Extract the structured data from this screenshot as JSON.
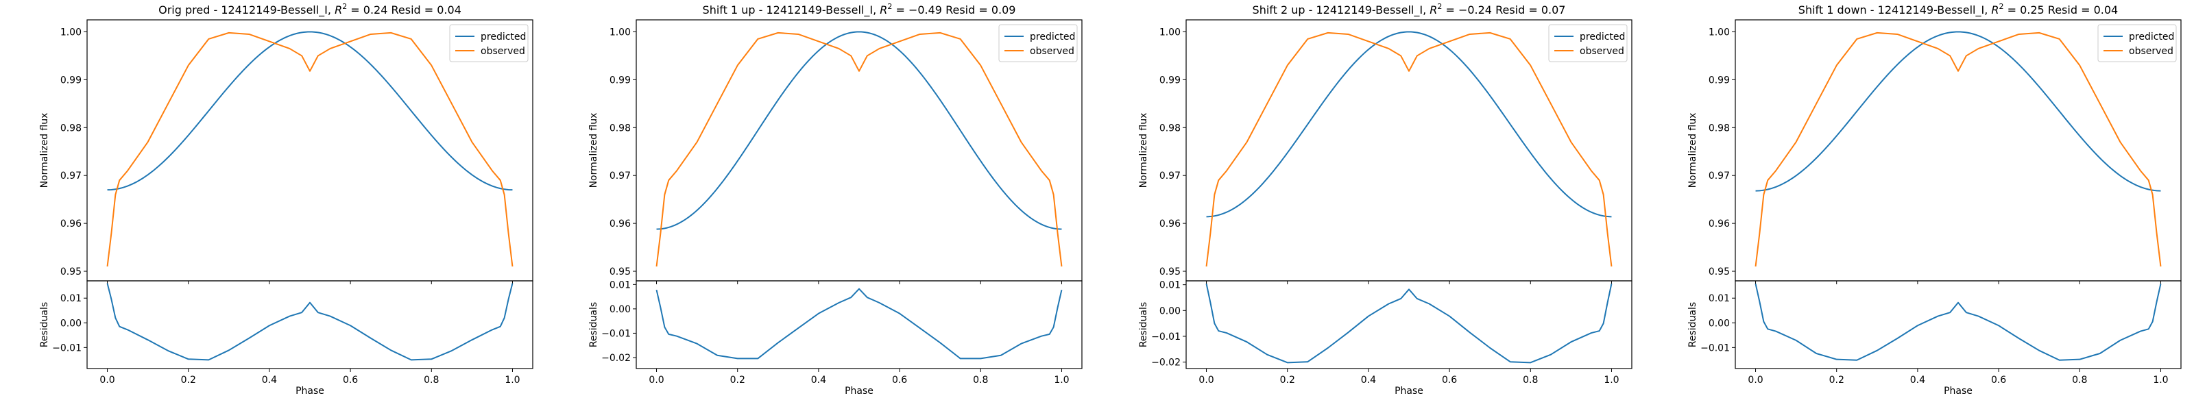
{
  "colors": {
    "predicted": "#1f77b4",
    "observed": "#ff7f0e"
  },
  "chart_data": [
    {
      "type": "line",
      "title": "Orig pred - 12412149-Bessell_I, $R^2 = 0.24$ Resid = 0.04",
      "title_main": "Orig pred - 12412149-Bessell_I, ",
      "title_sym": "R",
      "title_sup": "2",
      "title_rest": " = 0.24 Resid = 0.04",
      "xlabel": "Phase",
      "ylabel_top": "Normalized flux",
      "ylabel_bottom": "Residuals",
      "xlim": [
        -0.05,
        1.05
      ],
      "xticks": [
        "0.0",
        "0.2",
        "0.4",
        "0.6",
        "0.8",
        "1.0"
      ],
      "ylim_top": [
        0.948,
        1.0025
      ],
      "yticks_top": [
        "0.95",
        "0.96",
        "0.97",
        "0.98",
        "0.99",
        "1.00"
      ],
      "ylim_bottom": [
        -0.0185,
        0.017
      ],
      "yticks_bottom": [
        "−0.01",
        "0.00",
        "0.01"
      ],
      "legend": [
        "predicted",
        "observed"
      ],
      "legend_position": "upper right",
      "predicted_min": 0.967,
      "series": [
        {
          "name": "predicted",
          "x": [
            0.0,
            0.05,
            0.1,
            0.15,
            0.2,
            0.25,
            0.3,
            0.35,
            0.4,
            0.45,
            0.5,
            0.55,
            0.6,
            0.65,
            0.7,
            0.75,
            0.8,
            0.85,
            0.9,
            0.95,
            1.0
          ],
          "y": [
            0.967,
            0.9678,
            0.9701,
            0.9737,
            0.9783,
            0.9835,
            0.9887,
            0.9933,
            0.9969,
            0.9992,
            1.0,
            0.9992,
            0.9969,
            0.9933,
            0.9887,
            0.9835,
            0.9783,
            0.9737,
            0.9701,
            0.9678,
            0.967
          ]
        },
        {
          "name": "observed",
          "x": [
            0.0,
            0.01,
            0.02,
            0.03,
            0.05,
            0.1,
            0.15,
            0.2,
            0.25,
            0.3,
            0.35,
            0.4,
            0.45,
            0.48,
            0.5,
            0.52,
            0.55,
            0.6,
            0.65,
            0.7,
            0.75,
            0.8,
            0.85,
            0.9,
            0.95,
            0.97,
            0.98,
            0.99,
            1.0
          ],
          "y": [
            0.951,
            0.958,
            0.966,
            0.969,
            0.971,
            0.977,
            0.985,
            0.993,
            0.9985,
            0.9998,
            0.9995,
            0.998,
            0.9965,
            0.995,
            0.9918,
            0.995,
            0.9965,
            0.998,
            0.9995,
            0.9998,
            0.9985,
            0.993,
            0.985,
            0.977,
            0.971,
            0.969,
            0.966,
            0.958,
            0.951
          ]
        },
        {
          "name": "residuals",
          "x": [
            0.0,
            0.01,
            0.02,
            0.03,
            0.05,
            0.1,
            0.15,
            0.2,
            0.25,
            0.3,
            0.35,
            0.4,
            0.45,
            0.48,
            0.5,
            0.52,
            0.55,
            0.6,
            0.65,
            0.7,
            0.75,
            0.8,
            0.85,
            0.9,
            0.95,
            0.97,
            0.98,
            0.99,
            1.0
          ],
          "y": [
            0.016,
            0.0095,
            0.002,
            -0.0015,
            -0.0028,
            -0.0069,
            -0.0113,
            -0.0147,
            -0.015,
            -0.0111,
            -0.0062,
            -0.0011,
            0.0027,
            0.0042,
            0.0082,
            0.0042,
            0.0027,
            -0.0011,
            -0.0062,
            -0.0111,
            -0.015,
            -0.0147,
            -0.0113,
            -0.0069,
            -0.0028,
            -0.0015,
            0.002,
            0.0095,
            0.016
          ]
        }
      ]
    },
    {
      "type": "line",
      "title": "Shift 1 up - 12412149-Bessell_I, $R^2 = -0.49$ Resid = 0.09",
      "title_main": "Shift 1 up - 12412149-Bessell_I, ",
      "title_sym": "R",
      "title_sup": "2",
      "title_rest": " = −0.49 Resid = 0.09",
      "xlabel": "Phase",
      "ylabel_top": "Normalized flux",
      "ylabel_bottom": "Residuals",
      "xlim": [
        -0.05,
        1.05
      ],
      "xticks": [
        "0.0",
        "0.2",
        "0.4",
        "0.6",
        "0.8",
        "1.0"
      ],
      "ylim_top": [
        0.948,
        1.0025
      ],
      "yticks_top": [
        "0.95",
        "0.96",
        "0.97",
        "0.98",
        "0.99",
        "1.00"
      ],
      "ylim_bottom": [
        -0.0245,
        0.0115
      ],
      "yticks_bottom": [
        "−0.02",
        "−0.01",
        "0.00",
        "0.01"
      ],
      "legend": [
        "predicted",
        "observed"
      ],
      "legend_position": "upper right",
      "predicted_min": 0.9588,
      "series": [
        {
          "name": "predicted",
          "x": [
            0.0,
            0.05,
            0.1,
            0.15,
            0.2,
            0.25,
            0.3,
            0.35,
            0.4,
            0.45,
            0.5,
            0.55,
            0.6,
            0.65,
            0.7,
            0.75,
            0.8,
            0.85,
            0.9,
            0.95,
            1.0
          ],
          "y": [
            0.9588,
            0.9598,
            0.9627,
            0.9672,
            0.9729,
            0.9794,
            0.9859,
            0.9916,
            0.9961,
            0.999,
            1.0,
            0.999,
            0.9961,
            0.9916,
            0.9859,
            0.9794,
            0.9729,
            0.9672,
            0.9627,
            0.9598,
            0.9588
          ]
        },
        {
          "name": "observed",
          "x": [
            0.0,
            0.01,
            0.02,
            0.03,
            0.05,
            0.1,
            0.15,
            0.2,
            0.25,
            0.3,
            0.35,
            0.4,
            0.45,
            0.48,
            0.5,
            0.52,
            0.55,
            0.6,
            0.65,
            0.7,
            0.75,
            0.8,
            0.85,
            0.9,
            0.95,
            0.97,
            0.98,
            0.99,
            1.0
          ],
          "y": [
            0.951,
            0.958,
            0.966,
            0.969,
            0.971,
            0.977,
            0.985,
            0.993,
            0.9985,
            0.9998,
            0.9995,
            0.998,
            0.9965,
            0.995,
            0.9918,
            0.995,
            0.9965,
            0.998,
            0.9995,
            0.9998,
            0.9985,
            0.993,
            0.985,
            0.977,
            0.971,
            0.969,
            0.966,
            0.958,
            0.951
          ]
        },
        {
          "name": "residuals",
          "x": [
            0.0,
            0.01,
            0.02,
            0.03,
            0.05,
            0.1,
            0.15,
            0.2,
            0.25,
            0.3,
            0.35,
            0.4,
            0.45,
            0.48,
            0.5,
            0.52,
            0.55,
            0.6,
            0.65,
            0.7,
            0.75,
            0.8,
            0.85,
            0.9,
            0.95,
            0.97,
            0.98,
            0.99,
            1.0
          ],
          "y": [
            0.0078,
            0.0005,
            -0.0075,
            -0.0104,
            -0.0112,
            -0.0143,
            -0.0191,
            -0.0204,
            -0.0204,
            -0.0139,
            -0.0079,
            -0.0019,
            0.0025,
            0.0047,
            0.0082,
            0.0047,
            0.0025,
            -0.0019,
            -0.0079,
            -0.0139,
            -0.0204,
            -0.0204,
            -0.0191,
            -0.0143,
            -0.0112,
            -0.0104,
            -0.0075,
            0.0005,
            0.0078
          ]
        }
      ]
    },
    {
      "type": "line",
      "title": "Shift 2 up - 12412149-Bessell_I, $R^2 = -0.24$ Resid = 0.07",
      "title_main": "Shift 2 up - 12412149-Bessell_I, ",
      "title_sym": "R",
      "title_sup": "2",
      "title_rest": " = −0.24 Resid = 0.07",
      "xlabel": "Phase",
      "ylabel_top": "Normalized flux",
      "ylabel_bottom": "Residuals",
      "xlim": [
        -0.05,
        1.05
      ],
      "xticks": [
        "0.0",
        "0.2",
        "0.4",
        "0.6",
        "0.8",
        "1.0"
      ],
      "ylim_top": [
        0.948,
        1.0025
      ],
      "yticks_top": [
        "0.95",
        "0.96",
        "0.97",
        "0.98",
        "0.99",
        "1.00"
      ],
      "ylim_bottom": [
        -0.0225,
        0.0115
      ],
      "yticks_bottom": [
        "−0.02",
        "−0.01",
        "0.00",
        "0.01"
      ],
      "legend": [
        "predicted",
        "observed"
      ],
      "legend_position": "upper right",
      "predicted_min": 0.9614,
      "series": [
        {
          "name": "predicted",
          "x": [
            0.0,
            0.05,
            0.1,
            0.15,
            0.2,
            0.25,
            0.3,
            0.35,
            0.4,
            0.45,
            0.5,
            0.55,
            0.6,
            0.65,
            0.7,
            0.75,
            0.8,
            0.85,
            0.9,
            0.95,
            1.0
          ],
          "y": [
            0.9614,
            0.9623,
            0.965,
            0.9693,
            0.9746,
            0.9807,
            0.9868,
            0.9921,
            0.9964,
            0.9991,
            1.0,
            0.9991,
            0.9964,
            0.9921,
            0.9868,
            0.9807,
            0.9746,
            0.9693,
            0.965,
            0.9623,
            0.9614
          ]
        },
        {
          "name": "observed",
          "x": [
            0.0,
            0.01,
            0.02,
            0.03,
            0.05,
            0.1,
            0.15,
            0.2,
            0.25,
            0.3,
            0.35,
            0.4,
            0.45,
            0.48,
            0.5,
            0.52,
            0.55,
            0.6,
            0.65,
            0.7,
            0.75,
            0.8,
            0.85,
            0.9,
            0.95,
            0.97,
            0.98,
            0.99,
            1.0
          ],
          "y": [
            0.951,
            0.958,
            0.966,
            0.969,
            0.971,
            0.977,
            0.985,
            0.993,
            0.9985,
            0.9998,
            0.9995,
            0.998,
            0.9965,
            0.995,
            0.9918,
            0.995,
            0.9965,
            0.998,
            0.9995,
            0.9998,
            0.9985,
            0.993,
            0.985,
            0.977,
            0.971,
            0.969,
            0.966,
            0.958,
            0.951
          ]
        },
        {
          "name": "residuals",
          "x": [
            0.0,
            0.01,
            0.02,
            0.03,
            0.05,
            0.1,
            0.15,
            0.2,
            0.25,
            0.3,
            0.35,
            0.4,
            0.45,
            0.48,
            0.5,
            0.52,
            0.55,
            0.6,
            0.65,
            0.7,
            0.75,
            0.8,
            0.85,
            0.9,
            0.95,
            0.97,
            0.98,
            0.99,
            1.0
          ],
          "y": [
            0.0104,
            0.003,
            -0.005,
            -0.0079,
            -0.0087,
            -0.0122,
            -0.0171,
            -0.0202,
            -0.0199,
            -0.0145,
            -0.0085,
            -0.0022,
            0.0026,
            0.0046,
            0.0082,
            0.0046,
            0.0026,
            -0.0022,
            -0.0085,
            -0.0145,
            -0.0199,
            -0.0202,
            -0.0171,
            -0.0122,
            -0.0087,
            -0.0079,
            -0.005,
            0.003,
            0.0104
          ]
        }
      ]
    },
    {
      "type": "line",
      "title": "Shift 1 down - 12412149-Bessell_I, $R^2 = 0.25$ Resid = 0.04",
      "title_main": "Shift 1 down - 12412149-Bessell_I, ",
      "title_sym": "R",
      "title_sup": "2",
      "title_rest": " = 0.25 Resid = 0.04",
      "xlabel": "Phase",
      "ylabel_top": "Normalized flux",
      "ylabel_bottom": "Residuals",
      "xlim": [
        -0.05,
        1.05
      ],
      "xticks": [
        "0.0",
        "0.2",
        "0.4",
        "0.6",
        "0.8",
        "1.0"
      ],
      "ylim_top": [
        0.948,
        1.0025
      ],
      "yticks_top": [
        "0.95",
        "0.96",
        "0.97",
        "0.98",
        "0.99",
        "1.00"
      ],
      "ylim_bottom": [
        -0.0185,
        0.017
      ],
      "yticks_bottom": [
        "−0.01",
        "0.00",
        "0.01"
      ],
      "legend": [
        "predicted",
        "observed"
      ],
      "legend_position": "upper right",
      "predicted_min": 0.9668,
      "series": [
        {
          "name": "predicted",
          "x": [
            0.0,
            0.05,
            0.1,
            0.15,
            0.2,
            0.25,
            0.3,
            0.35,
            0.4,
            0.45,
            0.5,
            0.55,
            0.6,
            0.65,
            0.7,
            0.75,
            0.8,
            0.85,
            0.9,
            0.95,
            1.0
          ],
          "y": [
            0.9668,
            0.9676,
            0.9699,
            0.9736,
            0.9782,
            0.9834,
            0.9886,
            0.9932,
            0.9969,
            0.9992,
            1.0,
            0.9992,
            0.9969,
            0.9932,
            0.9886,
            0.9834,
            0.9782,
            0.9736,
            0.9699,
            0.9676,
            0.9668
          ]
        },
        {
          "name": "observed",
          "x": [
            0.0,
            0.01,
            0.02,
            0.03,
            0.05,
            0.1,
            0.15,
            0.2,
            0.25,
            0.3,
            0.35,
            0.4,
            0.45,
            0.48,
            0.5,
            0.52,
            0.55,
            0.6,
            0.65,
            0.7,
            0.75,
            0.8,
            0.85,
            0.9,
            0.95,
            0.97,
            0.98,
            0.99,
            1.0
          ],
          "y": [
            0.951,
            0.958,
            0.966,
            0.969,
            0.971,
            0.977,
            0.985,
            0.993,
            0.9985,
            0.9998,
            0.9995,
            0.998,
            0.9965,
            0.995,
            0.9918,
            0.995,
            0.9965,
            0.998,
            0.9995,
            0.9998,
            0.9985,
            0.993,
            0.985,
            0.977,
            0.971,
            0.969,
            0.966,
            0.958,
            0.951
          ]
        },
        {
          "name": "residuals",
          "x": [
            0.0,
            0.01,
            0.02,
            0.03,
            0.05,
            0.1,
            0.15,
            0.2,
            0.25,
            0.3,
            0.35,
            0.4,
            0.45,
            0.48,
            0.5,
            0.52,
            0.55,
            0.6,
            0.65,
            0.7,
            0.75,
            0.8,
            0.85,
            0.9,
            0.95,
            0.97,
            0.98,
            0.99,
            1.0
          ],
          "y": [
            0.0158,
            0.0085,
            0.0005,
            -0.0025,
            -0.0034,
            -0.0071,
            -0.0124,
            -0.0148,
            -0.0151,
            -0.0112,
            -0.0063,
            -0.0011,
            0.0027,
            0.0042,
            0.0082,
            0.0042,
            0.0027,
            -0.0011,
            -0.0063,
            -0.0112,
            -0.0151,
            -0.0148,
            -0.0124,
            -0.0071,
            -0.0034,
            -0.0025,
            0.0005,
            0.0085,
            0.0158
          ]
        }
      ]
    }
  ]
}
